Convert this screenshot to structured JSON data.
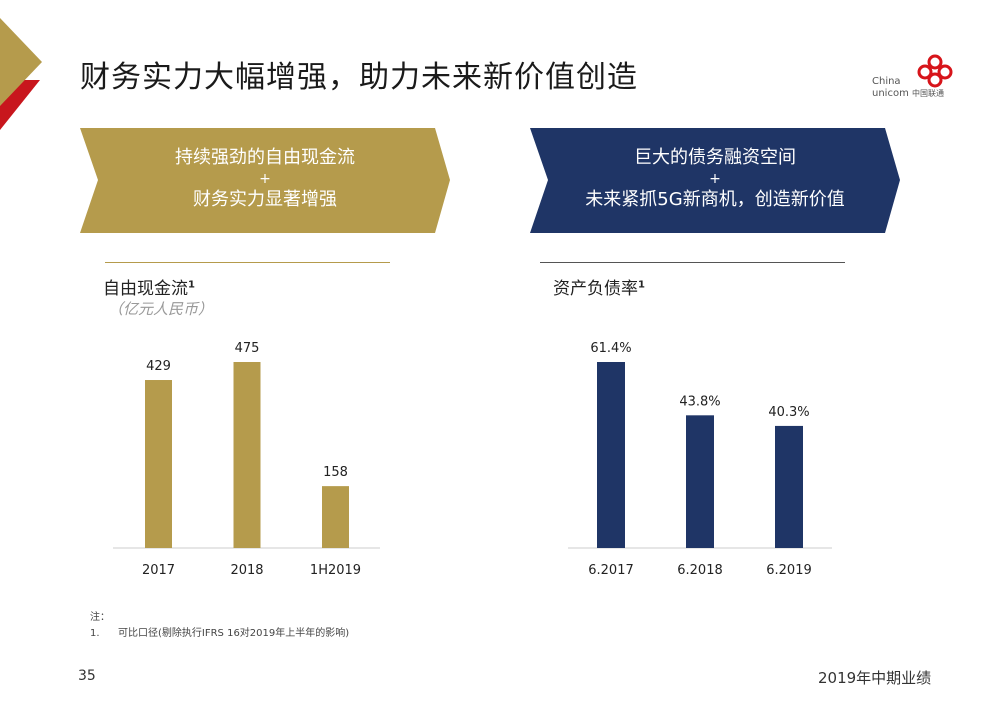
{
  "title": "财务实力大幅增强，助力未来新价值创造",
  "logo": {
    "text_en_1": "China",
    "text_en_2": "unicom",
    "text_cn": "中国联通",
    "color": "#D7141A"
  },
  "banners": [
    {
      "line1": "持续强劲的自由现金流",
      "plus": "+",
      "line2": "财务实力显著增强",
      "color": "#B59B4C"
    },
    {
      "line1": "巨大的债务融资空间",
      "plus": "+",
      "line2": "未来紧抓5G新商机，创造新价值",
      "color": "#1F3566"
    }
  ],
  "colors": {
    "gold": "#B59B4C",
    "navy": "#1F3566",
    "red": "#C8161D"
  },
  "chart_data": [
    {
      "type": "bar",
      "title": "自由现金流",
      "title_sup": "1",
      "subtitle": "（亿元人民币）",
      "categories": [
        "2017",
        "2018",
        "1H2019"
      ],
      "values": [
        429,
        475,
        158
      ],
      "data_labels": [
        "429",
        "475",
        "158"
      ],
      "ylim": [
        0,
        475
      ],
      "grid": false,
      "color": "#B59B4C"
    },
    {
      "type": "bar",
      "title": "资产负债率",
      "title_sup": "1",
      "categories": [
        "6.2017",
        "6.2018",
        "6.2019"
      ],
      "values": [
        61.4,
        43.8,
        40.3
      ],
      "data_labels": [
        "61.4%",
        "43.8%",
        "40.3%"
      ],
      "ylim": [
        0,
        61.4
      ],
      "grid": false,
      "color": "#1F3566"
    }
  ],
  "notes": {
    "heading": "注：",
    "items": [
      {
        "num": "1.",
        "text": "可比口径(剔除执行IFRS 16对2019年上半年的影响)"
      }
    ]
  },
  "page_number": "35",
  "footer": "2019年中期业绩"
}
